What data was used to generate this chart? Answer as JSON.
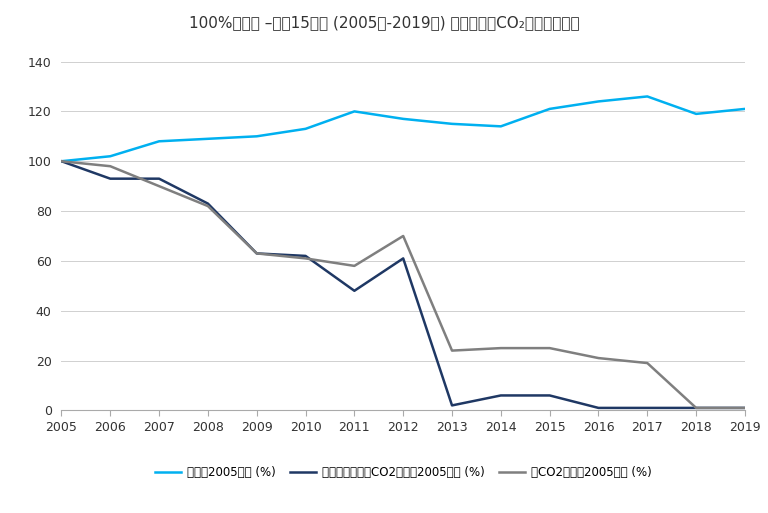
{
  "title": "100%の削減 –過去15年間 (2005年-2019年) の売上高とCO₂排出量の推移",
  "years": [
    2005,
    2006,
    2007,
    2008,
    2009,
    2010,
    2011,
    2012,
    2013,
    2014,
    2015,
    2016,
    2017,
    2018,
    2019
  ],
  "sales": [
    100,
    102,
    108,
    109,
    110,
    113,
    120,
    117,
    115,
    114,
    121,
    124,
    126,
    119,
    121
  ],
  "elec_co2": [
    100,
    93,
    93,
    83,
    63,
    62,
    48,
    61,
    2,
    6,
    6,
    1,
    1,
    1,
    1
  ],
  "total_co2": [
    100,
    98,
    90,
    82,
    63,
    61,
    58,
    70,
    24,
    25,
    25,
    21,
    19,
    1,
    1
  ],
  "sales_color": "#00B0F0",
  "elec_co2_color": "#1F3864",
  "total_co2_color": "#7F7F7F",
  "background_color": "#FFFFFF",
  "grid_color": "#D0D0D0",
  "ylim_min": 0,
  "ylim_max": 140,
  "yticks": [
    0,
    20,
    40,
    60,
    80,
    100,
    120,
    140
  ],
  "legend_sales": "売上高2005年比 (%)",
  "legend_elec": "電力消費によるCO2排出量2005年比 (%)",
  "legend_total": "総CO2排出量2005年比 (%)",
  "title_fontsize": 11,
  "tick_fontsize": 9,
  "legend_fontsize": 8.5,
  "linewidth": 1.8
}
